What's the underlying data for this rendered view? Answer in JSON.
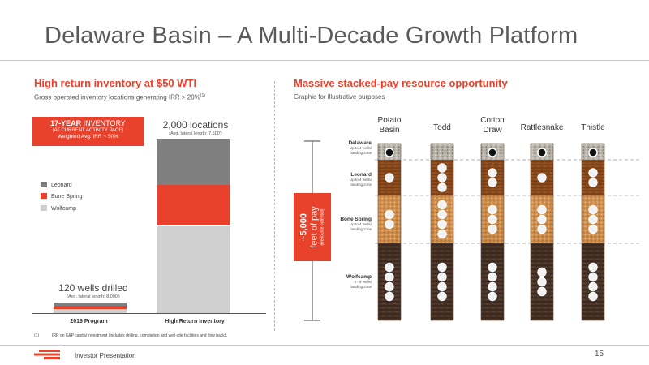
{
  "title": "Delaware Basin – A Multi-Decade Growth Platform",
  "left": {
    "heading": "High return inventory at $50 WTI",
    "subtitle_pre": "Gross ",
    "subtitle_underlined": "operated",
    "subtitle_post": " inventory locations generating IRR > 20%",
    "subtitle_sup": "(1)",
    "inventory_box": {
      "line1_bold": "17-YEAR",
      "line1_rest": " INVENTORY",
      "line2": "(AT CURRENT ACTIVITY PACE)",
      "line3": "Weighted Avg. IRR ~ 50%"
    },
    "legend": [
      {
        "label": "Leonard",
        "color": "#7f7f7f"
      },
      {
        "label": "Bone Spring",
        "color": "#e8412c"
      },
      {
        "label": "Wolfcamp",
        "color": "#cfcfcf"
      }
    ]
  },
  "chart_data": {
    "type": "bar",
    "stacked": true,
    "categories": [
      "2019 Program",
      "High Return Inventory"
    ],
    "series": [
      {
        "name": "Wolfcamp",
        "values": [
          44,
          1000
        ],
        "color": "#cfcfcf"
      },
      {
        "name": "Bone Spring",
        "values": [
          40,
          470
        ],
        "color": "#e8412c"
      },
      {
        "name": "Leonard",
        "values": [
          36,
          530
        ],
        "color": "#7f7f7f"
      }
    ],
    "totals": [
      120,
      2000
    ],
    "bar_labels": [
      {
        "main": "120 wells drilled",
        "sub": "(Avg. lateral length: 8,000')"
      },
      {
        "main": "2,000 locations",
        "sub": "(Avg. lateral length: 7,500')"
      }
    ],
    "ylim": [
      0,
      2000
    ],
    "grid": false
  },
  "footnote": {
    "num": "(1)",
    "text": "IRR on E&P capital investment (includes drilling, completion and well-site facilities and flow back)."
  },
  "right": {
    "heading": "Massive stacked-pay resource opportunity",
    "subtitle": "Graphic for illustrative purposes",
    "wells": [
      {
        "name_lines": [
          "Potato",
          "Basin"
        ],
        "zones": [
          1,
          1,
          2,
          4
        ]
      },
      {
        "name_lines": [
          "Todd"
        ],
        "zones": [
          0,
          3,
          4,
          4
        ]
      },
      {
        "name_lines": [
          "Cotton",
          "Draw"
        ],
        "zones": [
          1,
          2,
          3,
          4
        ]
      },
      {
        "name_lines": [
          "Rattlesnake"
        ],
        "zones": [
          1,
          1,
          3,
          3
        ]
      },
      {
        "name_lines": [
          "Thistle"
        ],
        "zones": [
          1,
          2,
          3,
          4
        ]
      }
    ],
    "zone_labels": [
      {
        "name": "Delaware",
        "sub1": "Up to 4 wells/",
        "sub2": "landing zone"
      },
      {
        "name": "Leonard",
        "sub1": "Up to 4 wells/",
        "sub2": "landing zone"
      },
      {
        "name": "Bone Spring",
        "sub1": "Up to 4 wells/",
        "sub2": "landing zone"
      },
      {
        "name": "Wolfcamp",
        "sub1": "4 - 8 wells/",
        "sub2": "landing zone"
      }
    ],
    "feet": {
      "line1": "~5,000",
      "line2": "feet of pay",
      "line3": "(Resource potential)"
    }
  },
  "footer": {
    "text": "Investor Presentation",
    "page": "15"
  }
}
